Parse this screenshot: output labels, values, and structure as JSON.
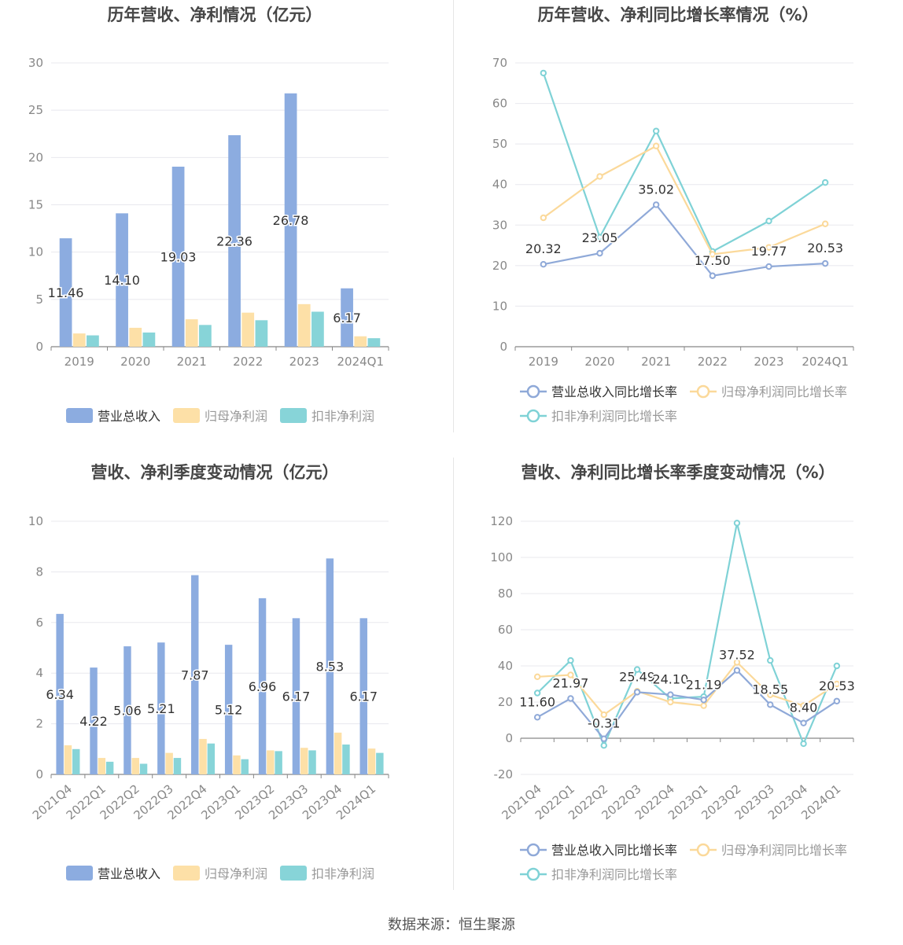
{
  "footer": {
    "source": "数据来源：恒生聚源"
  },
  "colors": {
    "revenue": "#8cace0",
    "net_profit": "#fde0a7",
    "deducted_profit": "#87d4d8",
    "revenue_line": "#8fa9d8",
    "net_line": "#fbd99a",
    "deducted_line": "#7fd2d6"
  },
  "chart_data": [
    {
      "id": "annual_bar",
      "type": "bar",
      "title": "历年营收、净利情况（亿元）",
      "categories": [
        "2019",
        "2020",
        "2021",
        "2022",
        "2023",
        "2024Q1"
      ],
      "ylim": [
        0,
        30
      ],
      "yticks": [
        0,
        5,
        10,
        15,
        20,
        25,
        30
      ],
      "series": [
        {
          "name": "营业总收入",
          "values": [
            11.46,
            14.1,
            19.03,
            22.36,
            26.78,
            6.17
          ],
          "labels": [
            "11.46",
            "14.10",
            "19.03",
            "22.36",
            "26.78",
            "6.17"
          ]
        },
        {
          "name": "归母净利润",
          "values": [
            1.4,
            2.0,
            2.9,
            3.6,
            4.5,
            1.1
          ]
        },
        {
          "name": "扣非净利润",
          "values": [
            1.2,
            1.5,
            2.3,
            2.8,
            3.7,
            0.9
          ]
        }
      ],
      "legend": "bottom",
      "grid": true
    },
    {
      "id": "annual_growth",
      "type": "line",
      "title": "历年营收、净利同比增长率情况（%）",
      "categories": [
        "2019",
        "2020",
        "2021",
        "2022",
        "2023",
        "2024Q1"
      ],
      "ylim": [
        0,
        70
      ],
      "yticks": [
        0,
        10,
        20,
        30,
        40,
        50,
        60,
        70
      ],
      "series": [
        {
          "name": "营业总收入同比增长率",
          "values": [
            20.32,
            23.05,
            35.02,
            17.5,
            19.77,
            20.53
          ],
          "labels": [
            "20.32",
            "23.05",
            "35.02",
            "17.50",
            "19.77",
            "20.53"
          ]
        },
        {
          "name": "归母净利润同比增长率",
          "values": [
            31.8,
            42.0,
            49.5,
            22.8,
            24.5,
            30.3
          ]
        },
        {
          "name": "扣非净利润同比增长率",
          "values": [
            67.5,
            27.0,
            53.2,
            23.5,
            31.0,
            40.5
          ]
        }
      ],
      "legend": "bottom",
      "grid": true
    },
    {
      "id": "quarterly_bar",
      "type": "bar",
      "title": "营收、净利季度变动情况（亿元）",
      "categories": [
        "2021Q4",
        "2022Q1",
        "2022Q2",
        "2022Q3",
        "2022Q4",
        "2023Q1",
        "2023Q2",
        "2023Q3",
        "2023Q4",
        "2024Q1"
      ],
      "ylim": [
        0,
        10
      ],
      "yticks": [
        0,
        2,
        4,
        6,
        8,
        10
      ],
      "series": [
        {
          "name": "营业总收入",
          "values": [
            6.34,
            4.22,
            5.06,
            5.21,
            7.87,
            5.12,
            6.96,
            6.17,
            8.53,
            6.17
          ],
          "labels": [
            "6.34",
            "4.22",
            "5.06",
            "5.21",
            "7.87",
            "5.12",
            "6.96",
            "6.17",
            "8.53",
            "6.17"
          ]
        },
        {
          "name": "归母净利润",
          "values": [
            1.15,
            0.65,
            0.65,
            0.85,
            1.4,
            0.75,
            0.95,
            1.05,
            1.65,
            1.02
          ]
        },
        {
          "name": "扣非净利润",
          "values": [
            1.0,
            0.5,
            0.42,
            0.65,
            1.22,
            0.6,
            0.92,
            0.95,
            1.18,
            0.85
          ]
        }
      ],
      "legend": "bottom",
      "grid": true
    },
    {
      "id": "quarterly_growth",
      "type": "line",
      "title": "营收、净利同比增长率季度变动情况（%）",
      "categories": [
        "2021Q4",
        "2022Q1",
        "2022Q2",
        "2022Q3",
        "2022Q4",
        "2023Q1",
        "2023Q2",
        "2023Q3",
        "2023Q4",
        "2024Q1"
      ],
      "ylim": [
        -20,
        120
      ],
      "yticks": [
        -20,
        0,
        20,
        40,
        60,
        80,
        100,
        120
      ],
      "series": [
        {
          "name": "营业总收入同比增长率",
          "values": [
            11.6,
            21.97,
            -0.31,
            25.49,
            24.1,
            21.19,
            37.52,
            18.55,
            8.4,
            20.53
          ],
          "labels": [
            "11.60",
            "21.97",
            "-0.31",
            "25.49",
            "24.10",
            "21.19",
            "37.52",
            "18.55",
            "8.40",
            "20.53"
          ]
        },
        {
          "name": "归母净利润同比增长率",
          "values": [
            34,
            35,
            13,
            26,
            20,
            18,
            42,
            24,
            18,
            30
          ]
        },
        {
          "name": "扣非净利润同比增长率",
          "values": [
            25,
            43,
            -4,
            38,
            22,
            23,
            119,
            43,
            -3,
            40
          ]
        }
      ],
      "legend": "bottom",
      "grid": true
    }
  ]
}
